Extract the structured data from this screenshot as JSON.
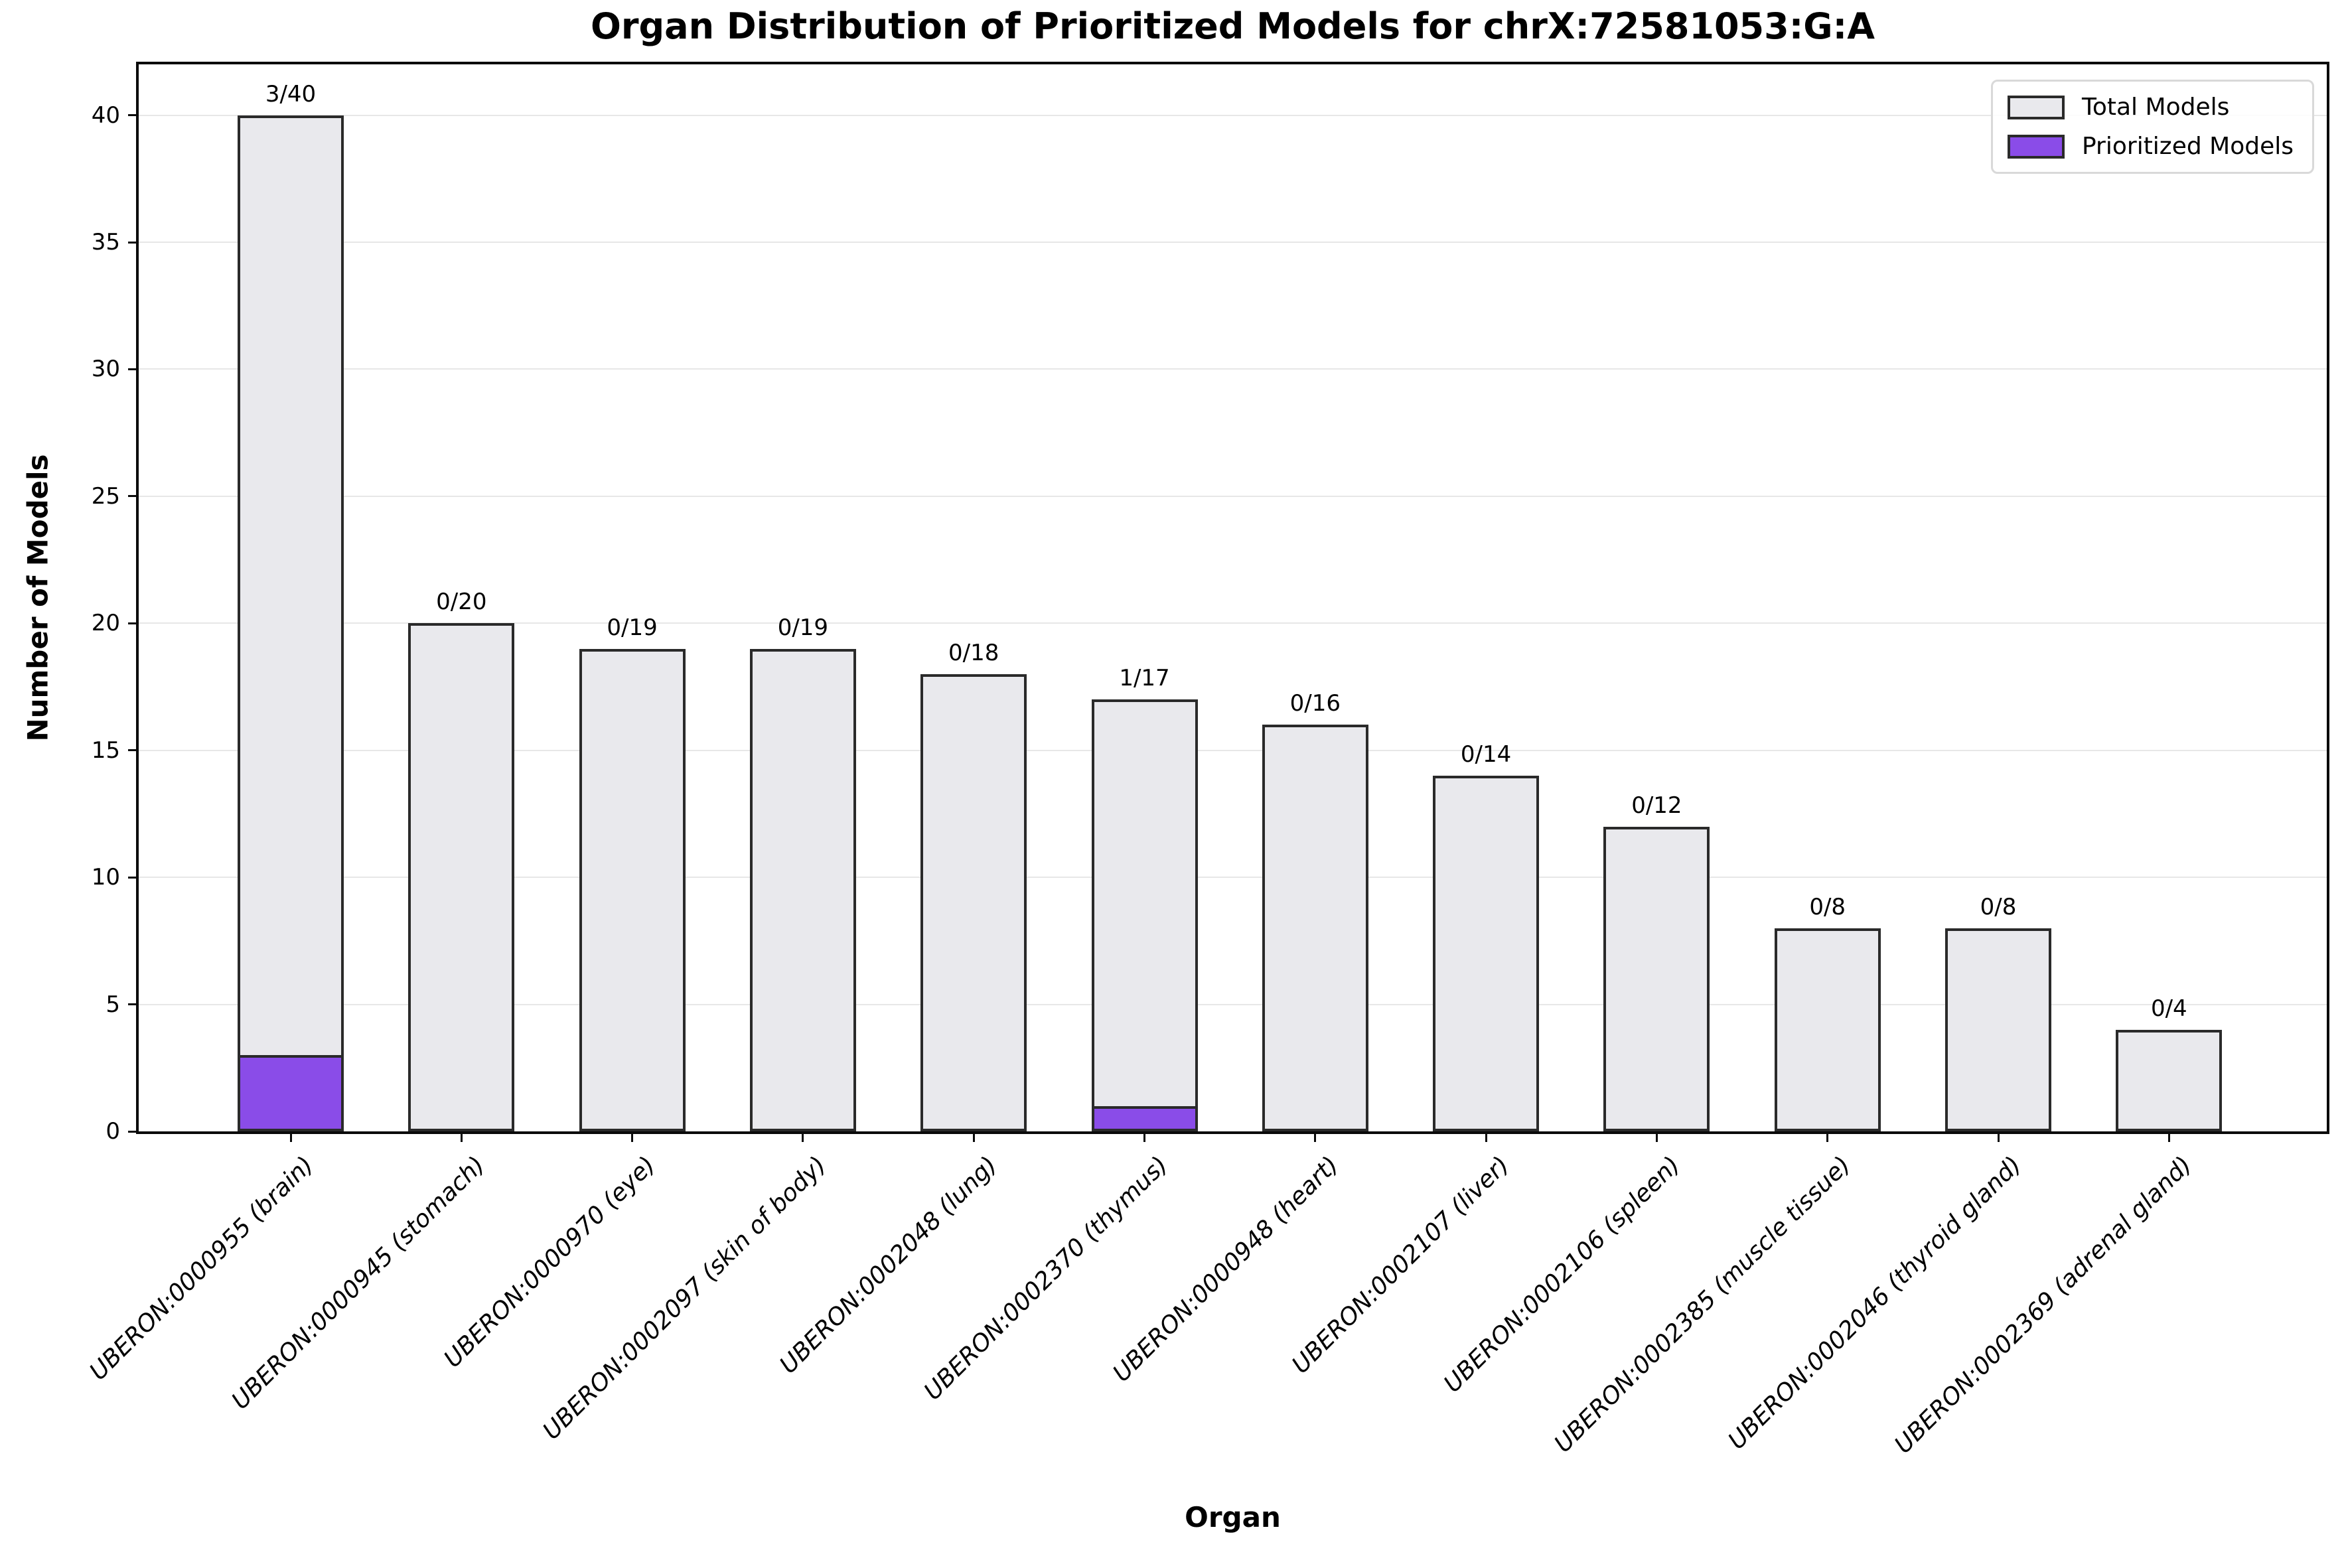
{
  "chart_data": {
    "type": "bar",
    "title": "Organ Distribution of Prioritized Models for chrX:72581053:G:A",
    "xlabel": "Organ",
    "ylabel": "Number of Models",
    "ylim": [
      0,
      42
    ],
    "yticks": [
      0,
      5,
      10,
      15,
      20,
      25,
      30,
      35,
      40
    ],
    "grid": "horizontal",
    "legend_position": "upper right",
    "categories": [
      "UBERON:0000955 (brain)",
      "UBERON:0000945 (stomach)",
      "UBERON:0000970 (eye)",
      "UBERON:0002097 (skin of body)",
      "UBERON:0002048 (lung)",
      "UBERON:0002370 (thymus)",
      "UBERON:0000948 (heart)",
      "UBERON:0002107 (liver)",
      "UBERON:0002106 (spleen)",
      "UBERON:0002385 (muscle tissue)",
      "UBERON:0002046 (thyroid gland)",
      "UBERON:0002369 (adrenal gland)"
    ],
    "series": [
      {
        "name": "Total Models",
        "color": "#e9e9ed",
        "values": [
          40,
          20,
          19,
          19,
          18,
          17,
          16,
          14,
          12,
          8,
          8,
          4
        ]
      },
      {
        "name": "Prioritized Models",
        "color": "#8a4ce8",
        "values": [
          3,
          0,
          0,
          0,
          0,
          1,
          0,
          0,
          0,
          0,
          0,
          0
        ]
      }
    ],
    "bar_labels": [
      "3/40",
      "0/20",
      "0/19",
      "0/19",
      "0/18",
      "1/17",
      "0/16",
      "0/14",
      "0/12",
      "0/8",
      "0/8",
      "0/4"
    ],
    "colors": {
      "bar_fill": "#e9e9ed",
      "prioritized_fill": "#8a4ce8",
      "bar_edge": "#2a2a2a",
      "gridline": "#e7e7e7",
      "spine": "#0a0a0a",
      "text": "#000000"
    },
    "legend": {
      "entries": [
        {
          "label": "Total Models",
          "color": "#e9e9ed"
        },
        {
          "label": "Prioritized Models",
          "color": "#8a4ce8"
        }
      ]
    }
  }
}
